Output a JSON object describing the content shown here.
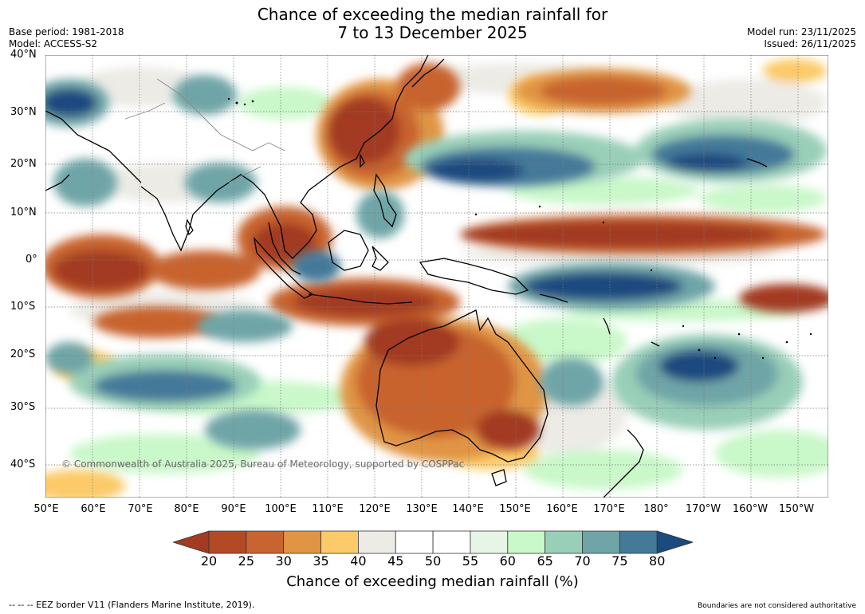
{
  "title_line1": "Chance of exceeding the median rainfall for",
  "title_line2": "7 to 13 December 2025",
  "base_period": "Base period: 1981-2018",
  "model": "Model: ACCESS-S2",
  "model_run": "Model run: 23/11/2025",
  "issued": "Issued: 26/11/2025",
  "lat_labels": [
    "40°N",
    "30°N",
    "20°N",
    "10°N",
    "0°",
    "10°S",
    "20°S",
    "30°S",
    "40°S"
  ],
  "lon_labels": [
    "50°E",
    "60°E",
    "70°E",
    "80°E",
    "90°E",
    "100°E",
    "110°E",
    "120°E",
    "130°E",
    "140°E",
    "150°E",
    "160°E",
    "170°E",
    "180°",
    "170°W",
    "160°W",
    "150°W"
  ],
  "copyright": "© Commonwealth of Australia 2025, Bureau of Meteorology, supported by COSPPac",
  "colorbar": {
    "labels": [
      "20",
      "25",
      "30",
      "35",
      "40",
      "45",
      "50",
      "55",
      "60",
      "65",
      "70",
      "75",
      "80"
    ],
    "colors": [
      "#a33a22",
      "#b24a25",
      "#c8642f",
      "#e09544",
      "#fcca68",
      "#ecebe6",
      "#ffffff",
      "#ffffff",
      "#e7f5e6",
      "#c9f8c9",
      "#99cfb8",
      "#6fa5a7",
      "#44799a",
      "#1b4a7f"
    ],
    "title": "Chance of exceeding median rainfall (%)"
  },
  "footer_left": "--  --  -- EEZ border V11 (Flanders Marine Institute, 2019).",
  "footer_right": "Boundaries are not considered authoritative"
}
